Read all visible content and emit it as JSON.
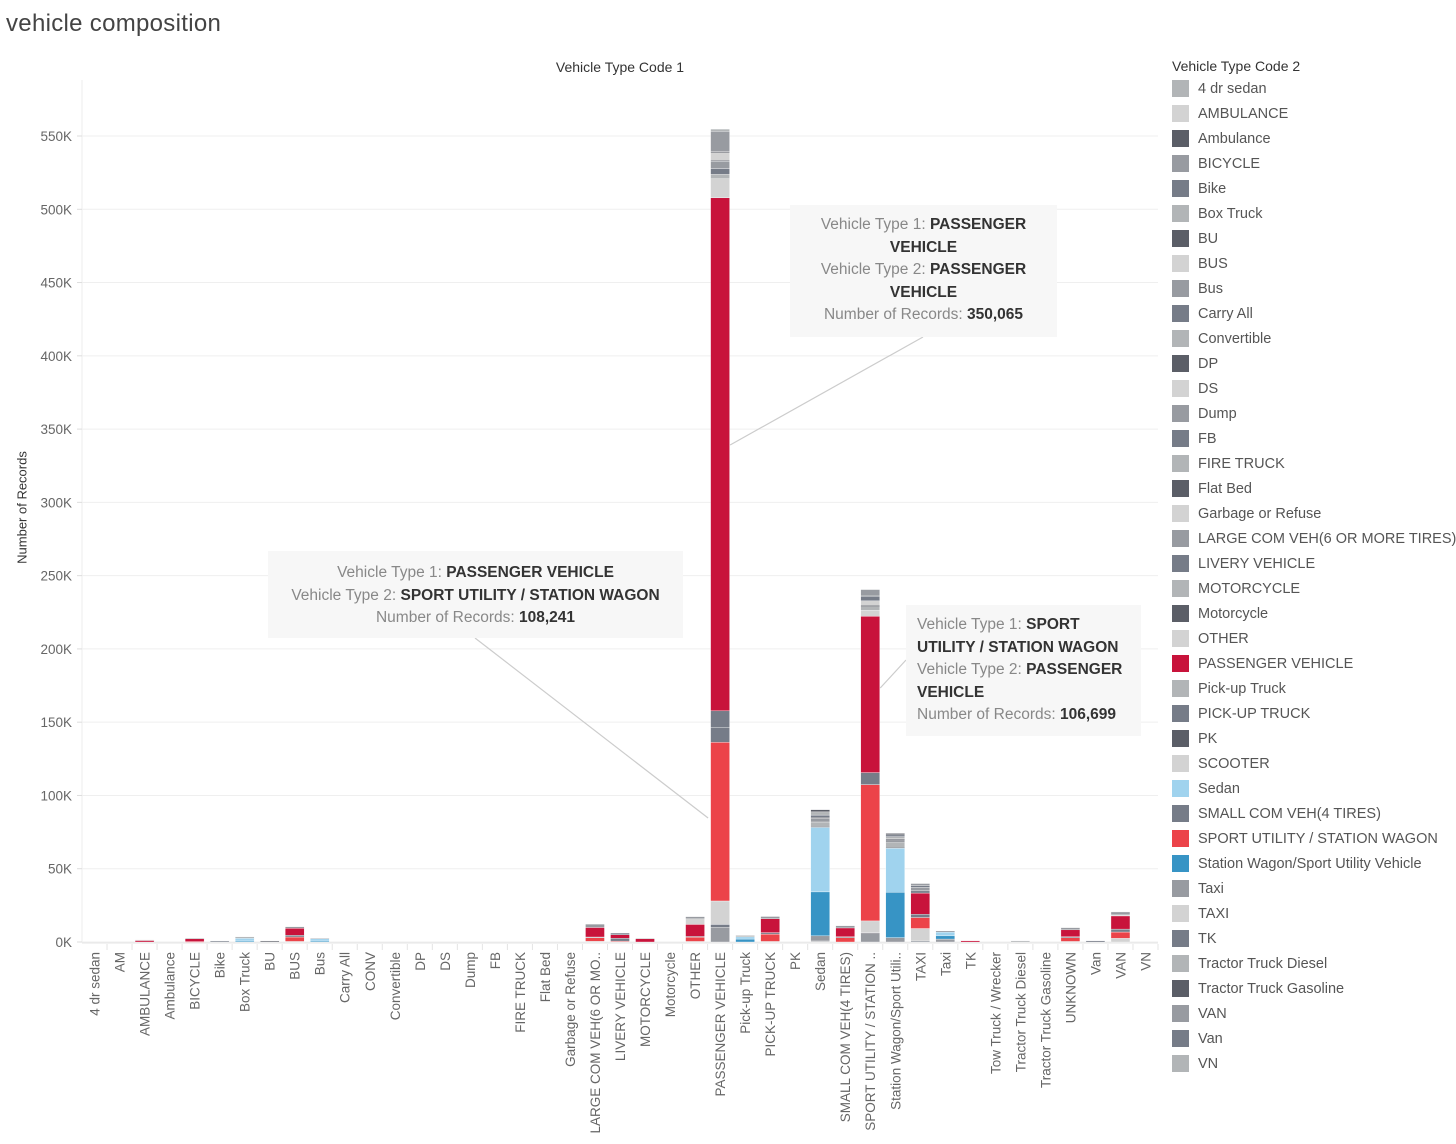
{
  "page": {
    "title": "vehicle composition",
    "column_header": "Vehicle Type Code 1"
  },
  "chart_data": {
    "type": "bar",
    "stacked": true,
    "title": "vehicle composition",
    "column_header": "Vehicle Type Code 1",
    "xlabel": "",
    "ylabel": "Number of Records",
    "ylim": [
      0,
      560000
    ],
    "yticks": [
      0,
      50000,
      100000,
      150000,
      200000,
      250000,
      300000,
      350000,
      400000,
      450000,
      500000,
      550000
    ],
    "ytick_labels": [
      "0K",
      "50K",
      "100K",
      "150K",
      "200K",
      "250K",
      "300K",
      "350K",
      "400K",
      "450K",
      "500K",
      "550K"
    ],
    "grid": true,
    "legend_position": "right",
    "categories": [
      "4 dr sedan",
      "AM",
      "AMBULANCE",
      "Ambulance",
      "BICYCLE",
      "Bike",
      "Box Truck",
      "BU",
      "BUS",
      "Bus",
      "Carry All",
      "CONV",
      "Convertible",
      "DP",
      "DS",
      "Dump",
      "FB",
      "FIRE TRUCK",
      "Flat Bed",
      "Garbage or Refuse",
      "LARGE COM VEH(6 OR MO..",
      "LIVERY VEHICLE",
      "MOTORCYCLE",
      "Motorcycle",
      "OTHER",
      "PASSENGER VEHICLE",
      "Pick-up Truck",
      "PICK-UP TRUCK",
      "PK",
      "Sedan",
      "SMALL COM VEH(4 TIRES)",
      "SPORT UTILITY / STATION ..",
      "Station Wagon/Sport Utili..",
      "TAXI",
      "Taxi",
      "TK",
      "Tow Truck / Wrecker",
      "Tractor Truck Diesel",
      "Tractor Truck Gasoline",
      "UNKNOWN",
      "Van",
      "VAN",
      "VN"
    ],
    "legend_title": "Vehicle Type Code 2",
    "legend": [
      {
        "name": "4 dr sedan",
        "color": "#b2b5b7"
      },
      {
        "name": "AMBULANCE",
        "color": "#d3d3d3"
      },
      {
        "name": "Ambulance",
        "color": "#5b5e67"
      },
      {
        "name": "BICYCLE",
        "color": "#989ba1"
      },
      {
        "name": "Bike",
        "color": "#767c88"
      },
      {
        "name": "Box Truck",
        "color": "#b2b5b7"
      },
      {
        "name": "BU",
        "color": "#5b5e67"
      },
      {
        "name": "BUS",
        "color": "#d3d3d3"
      },
      {
        "name": "Bus",
        "color": "#989ba1"
      },
      {
        "name": "Carry All",
        "color": "#767c88"
      },
      {
        "name": "Convertible",
        "color": "#b2b5b7"
      },
      {
        "name": "DP",
        "color": "#5b5e67"
      },
      {
        "name": "DS",
        "color": "#d3d3d3"
      },
      {
        "name": "Dump",
        "color": "#989ba1"
      },
      {
        "name": "FB",
        "color": "#767c88"
      },
      {
        "name": "FIRE TRUCK",
        "color": "#b2b5b7"
      },
      {
        "name": "Flat Bed",
        "color": "#5b5e67"
      },
      {
        "name": "Garbage or Refuse",
        "color": "#d3d3d3"
      },
      {
        "name": "LARGE COM VEH(6 OR MORE TIRES)",
        "color": "#989ba1"
      },
      {
        "name": "LIVERY VEHICLE",
        "color": "#767c88"
      },
      {
        "name": "MOTORCYCLE",
        "color": "#b2b5b7"
      },
      {
        "name": "Motorcycle",
        "color": "#5b5e67"
      },
      {
        "name": "OTHER",
        "color": "#d3d3d3"
      },
      {
        "name": "PASSENGER VEHICLE",
        "color": "#c8133b"
      },
      {
        "name": "Pick-up Truck",
        "color": "#b2b5b7"
      },
      {
        "name": "PICK-UP TRUCK",
        "color": "#767c88"
      },
      {
        "name": "PK",
        "color": "#5b5e67"
      },
      {
        "name": "SCOOTER",
        "color": "#d3d3d3"
      },
      {
        "name": "Sedan",
        "color": "#a0d3ee"
      },
      {
        "name": "SMALL COM VEH(4 TIRES)",
        "color": "#767c88"
      },
      {
        "name": "SPORT UTILITY / STATION WAGON",
        "color": "#ec4349"
      },
      {
        "name": "Station Wagon/Sport Utility Vehicle",
        "color": "#3794c5"
      },
      {
        "name": "Taxi",
        "color": "#989ba1"
      },
      {
        "name": "TAXI",
        "color": "#d3d3d3"
      },
      {
        "name": "TK",
        "color": "#767c88"
      },
      {
        "name": "Tractor Truck Diesel",
        "color": "#b2b5b7"
      },
      {
        "name": "Tractor Truck Gasoline",
        "color": "#5b5e67"
      },
      {
        "name": "VAN",
        "color": "#989ba1"
      },
      {
        "name": "Van",
        "color": "#767c88"
      },
      {
        "name": "VN",
        "color": "#b2b5b7"
      }
    ],
    "series_stacks": {
      "4 dr sedan": [],
      "AM": [],
      "AMBULANCE": [
        {
          "type2": "PASSENGER VEHICLE",
          "value": 1200
        },
        {
          "type2": "OTHER",
          "value": 300
        }
      ],
      "Ambulance": [],
      "BICYCLE": [
        {
          "type2": "SPORT UTILITY / STATION WAGON",
          "value": 300
        },
        {
          "type2": "PASSENGER VEHICLE",
          "value": 2000
        },
        {
          "type2": "BICYCLE",
          "value": 400
        }
      ],
      "Bike": [
        {
          "type2": "Bike",
          "value": 700
        }
      ],
      "Box Truck": [
        {
          "type2": "Station Wagon/Sport Utility Vehicle",
          "value": 700
        },
        {
          "type2": "Sedan",
          "value": 1800
        },
        {
          "type2": "Box Truck",
          "value": 1000
        }
      ],
      "BU": [
        {
          "type2": "BU",
          "value": 700
        }
      ],
      "BUS": [
        {
          "type2": "OTHER",
          "value": 400
        },
        {
          "type2": "SPORT UTILITY / STATION WAGON",
          "value": 3000
        },
        {
          "type2": "PICK-UP TRUCK",
          "value": 1200
        },
        {
          "type2": "PASSENGER VEHICLE",
          "value": 4800
        },
        {
          "type2": "BICYCLE",
          "value": 1000
        }
      ],
      "Bus": [
        {
          "type2": "Station Wagon/Sport Utility Vehicle",
          "value": 700
        },
        {
          "type2": "Sedan",
          "value": 1500
        },
        {
          "type2": "Bus",
          "value": 500
        }
      ],
      "Carry All": [],
      "CONV": [],
      "Convertible": [],
      "DP": [],
      "DS": [],
      "Dump": [],
      "FB": [],
      "FIRE TRUCK": [],
      "Flat Bed": [],
      "Garbage or Refuse": [],
      "LARGE COM VEH(6 OR MO..": [
        {
          "type2": "OTHER",
          "value": 500
        },
        {
          "type2": "SPORT UTILITY / STATION WAGON",
          "value": 2400
        },
        {
          "type2": "LIVERY VEHICLE",
          "value": 500
        },
        {
          "type2": "PASSENGER VEHICLE",
          "value": 6500
        },
        {
          "type2": "LARGE COM VEH(6 OR MORE TIRES)",
          "value": 2300
        }
      ],
      "LIVERY VEHICLE": [
        {
          "type2": "SPORT UTILITY / STATION WAGON",
          "value": 600
        },
        {
          "type2": "PICK-UP TRUCK",
          "value": 2000
        },
        {
          "type2": "PASSENGER VEHICLE",
          "value": 2400
        },
        {
          "type2": "LIVERY VEHICLE",
          "value": 1100
        }
      ],
      "MOTORCYCLE": [
        {
          "type2": "PASSENGER VEHICLE",
          "value": 2300
        },
        {
          "type2": "MOTORCYCLE",
          "value": 400
        }
      ],
      "Motorcycle": [],
      "OTHER": [
        {
          "type2": "OTHER",
          "value": 400
        },
        {
          "type2": "SPORT UTILITY / STATION WAGON",
          "value": 3000
        },
        {
          "type2": "LIVERY VEHICLE",
          "value": 400
        },
        {
          "type2": "PASSENGER VEHICLE",
          "value": 8200
        },
        {
          "type2": "OTHER",
          "value": 3800
        },
        {
          "type2": "BICYCLE",
          "value": 1500
        }
      ],
      "PASSENGER VEHICLE": [
        {
          "type2": "BICYCLE",
          "value": 10000
        },
        {
          "type2": "SMALL COM VEH(4 TIRES)",
          "value": 2000
        },
        {
          "type2": "OTHER",
          "value": 16000
        },
        {
          "type2": "SPORT UTILITY / STATION WAGON",
          "value": 108241
        },
        {
          "type2": "PICK-UP TRUCK",
          "value": 10000
        },
        {
          "type2": "LIVERY VEHICLE",
          "value": 11500
        },
        {
          "type2": "PASSENGER VEHICLE",
          "value": 350065
        },
        {
          "type2": "SCOOTER",
          "value": 13000
        },
        {
          "type2": "MOTORCYCLE",
          "value": 3000
        },
        {
          "type2": "Bike",
          "value": 4000
        },
        {
          "type2": "Dump",
          "value": 5000
        },
        {
          "type2": "Ambulance",
          "value": 700
        },
        {
          "type2": "AMBULANCE",
          "value": 5000
        },
        {
          "type2": "BU",
          "value": 700
        },
        {
          "type2": "BICYCLE",
          "value": 14000
        },
        {
          "type2": "4 dr sedan",
          "value": 1500
        }
      ],
      "Pick-up Truck": [
        {
          "type2": "Station Wagon/Sport Utility Vehicle",
          "value": 2000
        },
        {
          "type2": "Sedan",
          "value": 1500
        },
        {
          "type2": "Pick-up Truck",
          "value": 1000
        }
      ],
      "PICK-UP TRUCK": [
        {
          "type2": "OTHER",
          "value": 400
        },
        {
          "type2": "SPORT UTILITY / STATION WAGON",
          "value": 5000
        },
        {
          "type2": "PICK-UP TRUCK",
          "value": 1000
        },
        {
          "type2": "PASSENGER VEHICLE",
          "value": 9500
        },
        {
          "type2": "BICYCLE",
          "value": 1500
        }
      ],
      "PK": [],
      "Sedan": [
        {
          "type2": "4 dr sedan",
          "value": 700
        },
        {
          "type2": "Taxi",
          "value": 3500
        },
        {
          "type2": "Station Wagon/Sport Utility Vehicle",
          "value": 30000
        },
        {
          "type2": "Sedan",
          "value": 44000
        },
        {
          "type2": "PK",
          "value": 700
        },
        {
          "type2": "VN",
          "value": 3000
        },
        {
          "type2": "Taxi",
          "value": 2500
        },
        {
          "type2": "Ambulance",
          "value": 700
        },
        {
          "type2": "Van",
          "value": 1500
        },
        {
          "type2": "VN",
          "value": 2200
        },
        {
          "type2": "Ambulance",
          "value": 1500
        }
      ],
      "SMALL COM VEH(4 TIRES)": [
        {
          "type2": "SPORT UTILITY / STATION WAGON",
          "value": 3000
        },
        {
          "type2": "LIVERY VEHICLE",
          "value": 600
        },
        {
          "type2": "PASSENGER VEHICLE",
          "value": 6000
        },
        {
          "type2": "BICYCLE",
          "value": 1500
        }
      ],
      "SPORT UTILITY / STATION ..": [
        {
          "type2": "BICYCLE",
          "value": 5700
        },
        {
          "type2": "Ambulance",
          "value": 700
        },
        {
          "type2": "OTHER",
          "value": 8000
        },
        {
          "type2": "SPORT UTILITY / STATION WAGON",
          "value": 93000
        },
        {
          "type2": "PICK-UP TRUCK",
          "value": 8200
        },
        {
          "type2": "PASSENGER VEHICLE",
          "value": 106699
        },
        {
          "type2": "SCOOTER",
          "value": 4000
        },
        {
          "type2": "4 dr sedan",
          "value": 2500
        },
        {
          "type2": "Ambulance",
          "value": 1000
        },
        {
          "type2": "AMBULANCE",
          "value": 3000
        },
        {
          "type2": "Van",
          "value": 3000
        },
        {
          "type2": "Ambulance",
          "value": 700
        },
        {
          "type2": "BICYCLE",
          "value": 4000
        }
      ],
      "Station Wagon/Sport Utili..": [
        {
          "type2": "Taxi",
          "value": 3000
        },
        {
          "type2": "Station Wagon/Sport Utility Vehicle",
          "value": 31000
        },
        {
          "type2": "Sedan",
          "value": 30000
        },
        {
          "type2": "PK",
          "value": 700
        },
        {
          "type2": "VN",
          "value": 3000
        },
        {
          "type2": "Taxi",
          "value": 2000
        },
        {
          "type2": "Ambulance",
          "value": 700
        },
        {
          "type2": "VN",
          "value": 1500
        },
        {
          "type2": "Van",
          "value": 1200
        },
        {
          "type2": "Ambulance",
          "value": 1000
        }
      ],
      "TAXI": [
        {
          "type2": "SMALL COM VEH(4 TIRES)",
          "value": 700
        },
        {
          "type2": "OTHER",
          "value": 8500
        },
        {
          "type2": "SPORT UTILITY / STATION WAGON",
          "value": 7500
        },
        {
          "type2": "PICK-UP TRUCK",
          "value": 2200
        },
        {
          "type2": "PASSENGER VEHICLE",
          "value": 14500
        },
        {
          "type2": "LIVERY VEHICLE",
          "value": 1500
        },
        {
          "type2": "BICYCLE",
          "value": 2500
        },
        {
          "type2": "PICK-UP TRUCK",
          "value": 1000
        },
        {
          "type2": "BICYCLE",
          "value": 1500
        }
      ],
      "Taxi": [
        {
          "type2": "Taxi",
          "value": 2000
        },
        {
          "type2": "Station Wagon/Sport Utility Vehicle",
          "value": 2200
        },
        {
          "type2": "Sedan",
          "value": 2600
        },
        {
          "type2": "Van",
          "value": 700
        }
      ],
      "TK": [
        {
          "type2": "PASSENGER VEHICLE",
          "value": 800
        }
      ],
      "Tow Truck / Wrecker": [],
      "Tractor Truck Diesel": [
        {
          "type2": "Tractor Truck Diesel",
          "value": 800
        }
      ],
      "Tractor Truck Gasoline": [],
      "UNKNOWN": [
        {
          "type2": "OTHER",
          "value": 400
        },
        {
          "type2": "SPORT UTILITY / STATION WAGON",
          "value": 2500
        },
        {
          "type2": "PICK-UP TRUCK",
          "value": 700
        },
        {
          "type2": "PASSENGER VEHICLE",
          "value": 4700
        },
        {
          "type2": "BICYCLE",
          "value": 1500
        }
      ],
      "Van": [
        {
          "type2": "Van",
          "value": 800
        }
      ],
      "VAN": [
        {
          "type2": "OTHER",
          "value": 2500
        },
        {
          "type2": "SPORT UTILITY / STATION WAGON",
          "value": 4300
        },
        {
          "type2": "PICK-UP TRUCK",
          "value": 2000
        },
        {
          "type2": "PASSENGER VEHICLE",
          "value": 9000
        },
        {
          "type2": "AMBULANCE",
          "value": 700
        },
        {
          "type2": "BICYCLE",
          "value": 2000
        }
      ],
      "VN": []
    },
    "annotations": [
      {
        "id": "tt1",
        "type1": "PASSENGER VEHICLE",
        "type2": "PASSENGER VEHICLE",
        "records": "350,065"
      },
      {
        "id": "tt2",
        "type1": "PASSENGER VEHICLE",
        "type2": "SPORT UTILITY / STATION WAGON",
        "records": "108,241"
      },
      {
        "id": "tt3",
        "type1": "SPORT UTILITY / STATION WAGON",
        "type2": "PASSENGER VEHICLE",
        "records": "106,699"
      }
    ]
  },
  "tooltips": {
    "label_type1": "Vehicle Type 1:",
    "label_type2": "Vehicle Type 2:",
    "label_records": "Number of Records:",
    "tt1": {
      "type1a": "PASSENGER",
      "type1b": "VEHICLE",
      "type2a": "PASSENGER",
      "type2b": "VEHICLE",
      "records": "350,065"
    },
    "tt2": {
      "type1": "PASSENGER VEHICLE",
      "type2": "SPORT UTILITY / STATION WAGON",
      "records": "108,241"
    },
    "tt3": {
      "type1a": "SPORT",
      "type1b": "UTILITY / STATION WAGON",
      "type2a": "PASSENGER",
      "type2b": "VEHICLE",
      "records": "106,699"
    }
  }
}
